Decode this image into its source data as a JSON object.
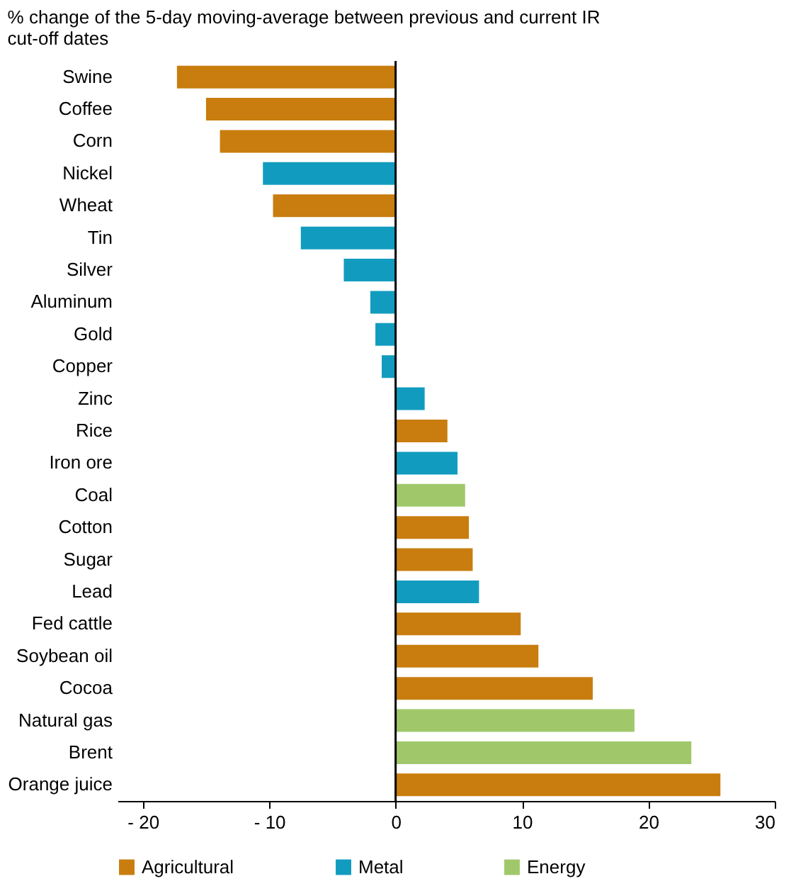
{
  "chart_data": {
    "type": "bar",
    "orientation": "horizontal",
    "title": "% change of the 5-day moving-average between previous and current IR cut-off dates",
    "categories": [
      "Swine",
      "Coffee",
      "Corn",
      "Nickel",
      "Wheat",
      "Tin",
      "Silver",
      "Aluminum",
      "Gold",
      "Copper",
      "Zinc",
      "Rice",
      "Iron ore",
      "Coal",
      "Cotton",
      "Sugar",
      "Lead",
      "Fed cattle",
      "Soybean oil",
      "Cocoa",
      "Natural gas",
      "Brent",
      "Orange juice"
    ],
    "series": [
      {
        "name": "Agricultural",
        "color": "#c87d0e",
        "values": [
          -17.3,
          -15.0,
          -13.9,
          null,
          -9.7,
          null,
          null,
          null,
          null,
          null,
          null,
          4.1,
          null,
          null,
          5.8,
          6.1,
          null,
          9.9,
          11.3,
          15.6,
          null,
          null,
          25.7
        ]
      },
      {
        "name": "Metal",
        "color": "#119cbf",
        "values": [
          null,
          null,
          null,
          -10.5,
          null,
          -7.5,
          -4.1,
          -2.0,
          -1.6,
          -1.1,
          2.3,
          null,
          4.9,
          null,
          null,
          null,
          6.6,
          null,
          null,
          null,
          null,
          null,
          null
        ]
      },
      {
        "name": "Energy",
        "color": "#a0c86a",
        "values": [
          null,
          null,
          null,
          null,
          null,
          null,
          null,
          null,
          null,
          null,
          null,
          null,
          null,
          5.5,
          null,
          null,
          null,
          null,
          null,
          null,
          18.9,
          23.4,
          null
        ]
      }
    ],
    "xlim": [
      -22,
      30
    ],
    "xticks": [
      {
        "value": -20,
        "label": "- 20"
      },
      {
        "value": -10,
        "label": "- 10"
      },
      0,
      10,
      20,
      30
    ],
    "ref_lines": [
      {
        "axis": "x",
        "value": 0,
        "color": "#000000"
      }
    ],
    "legend": "bottom"
  }
}
